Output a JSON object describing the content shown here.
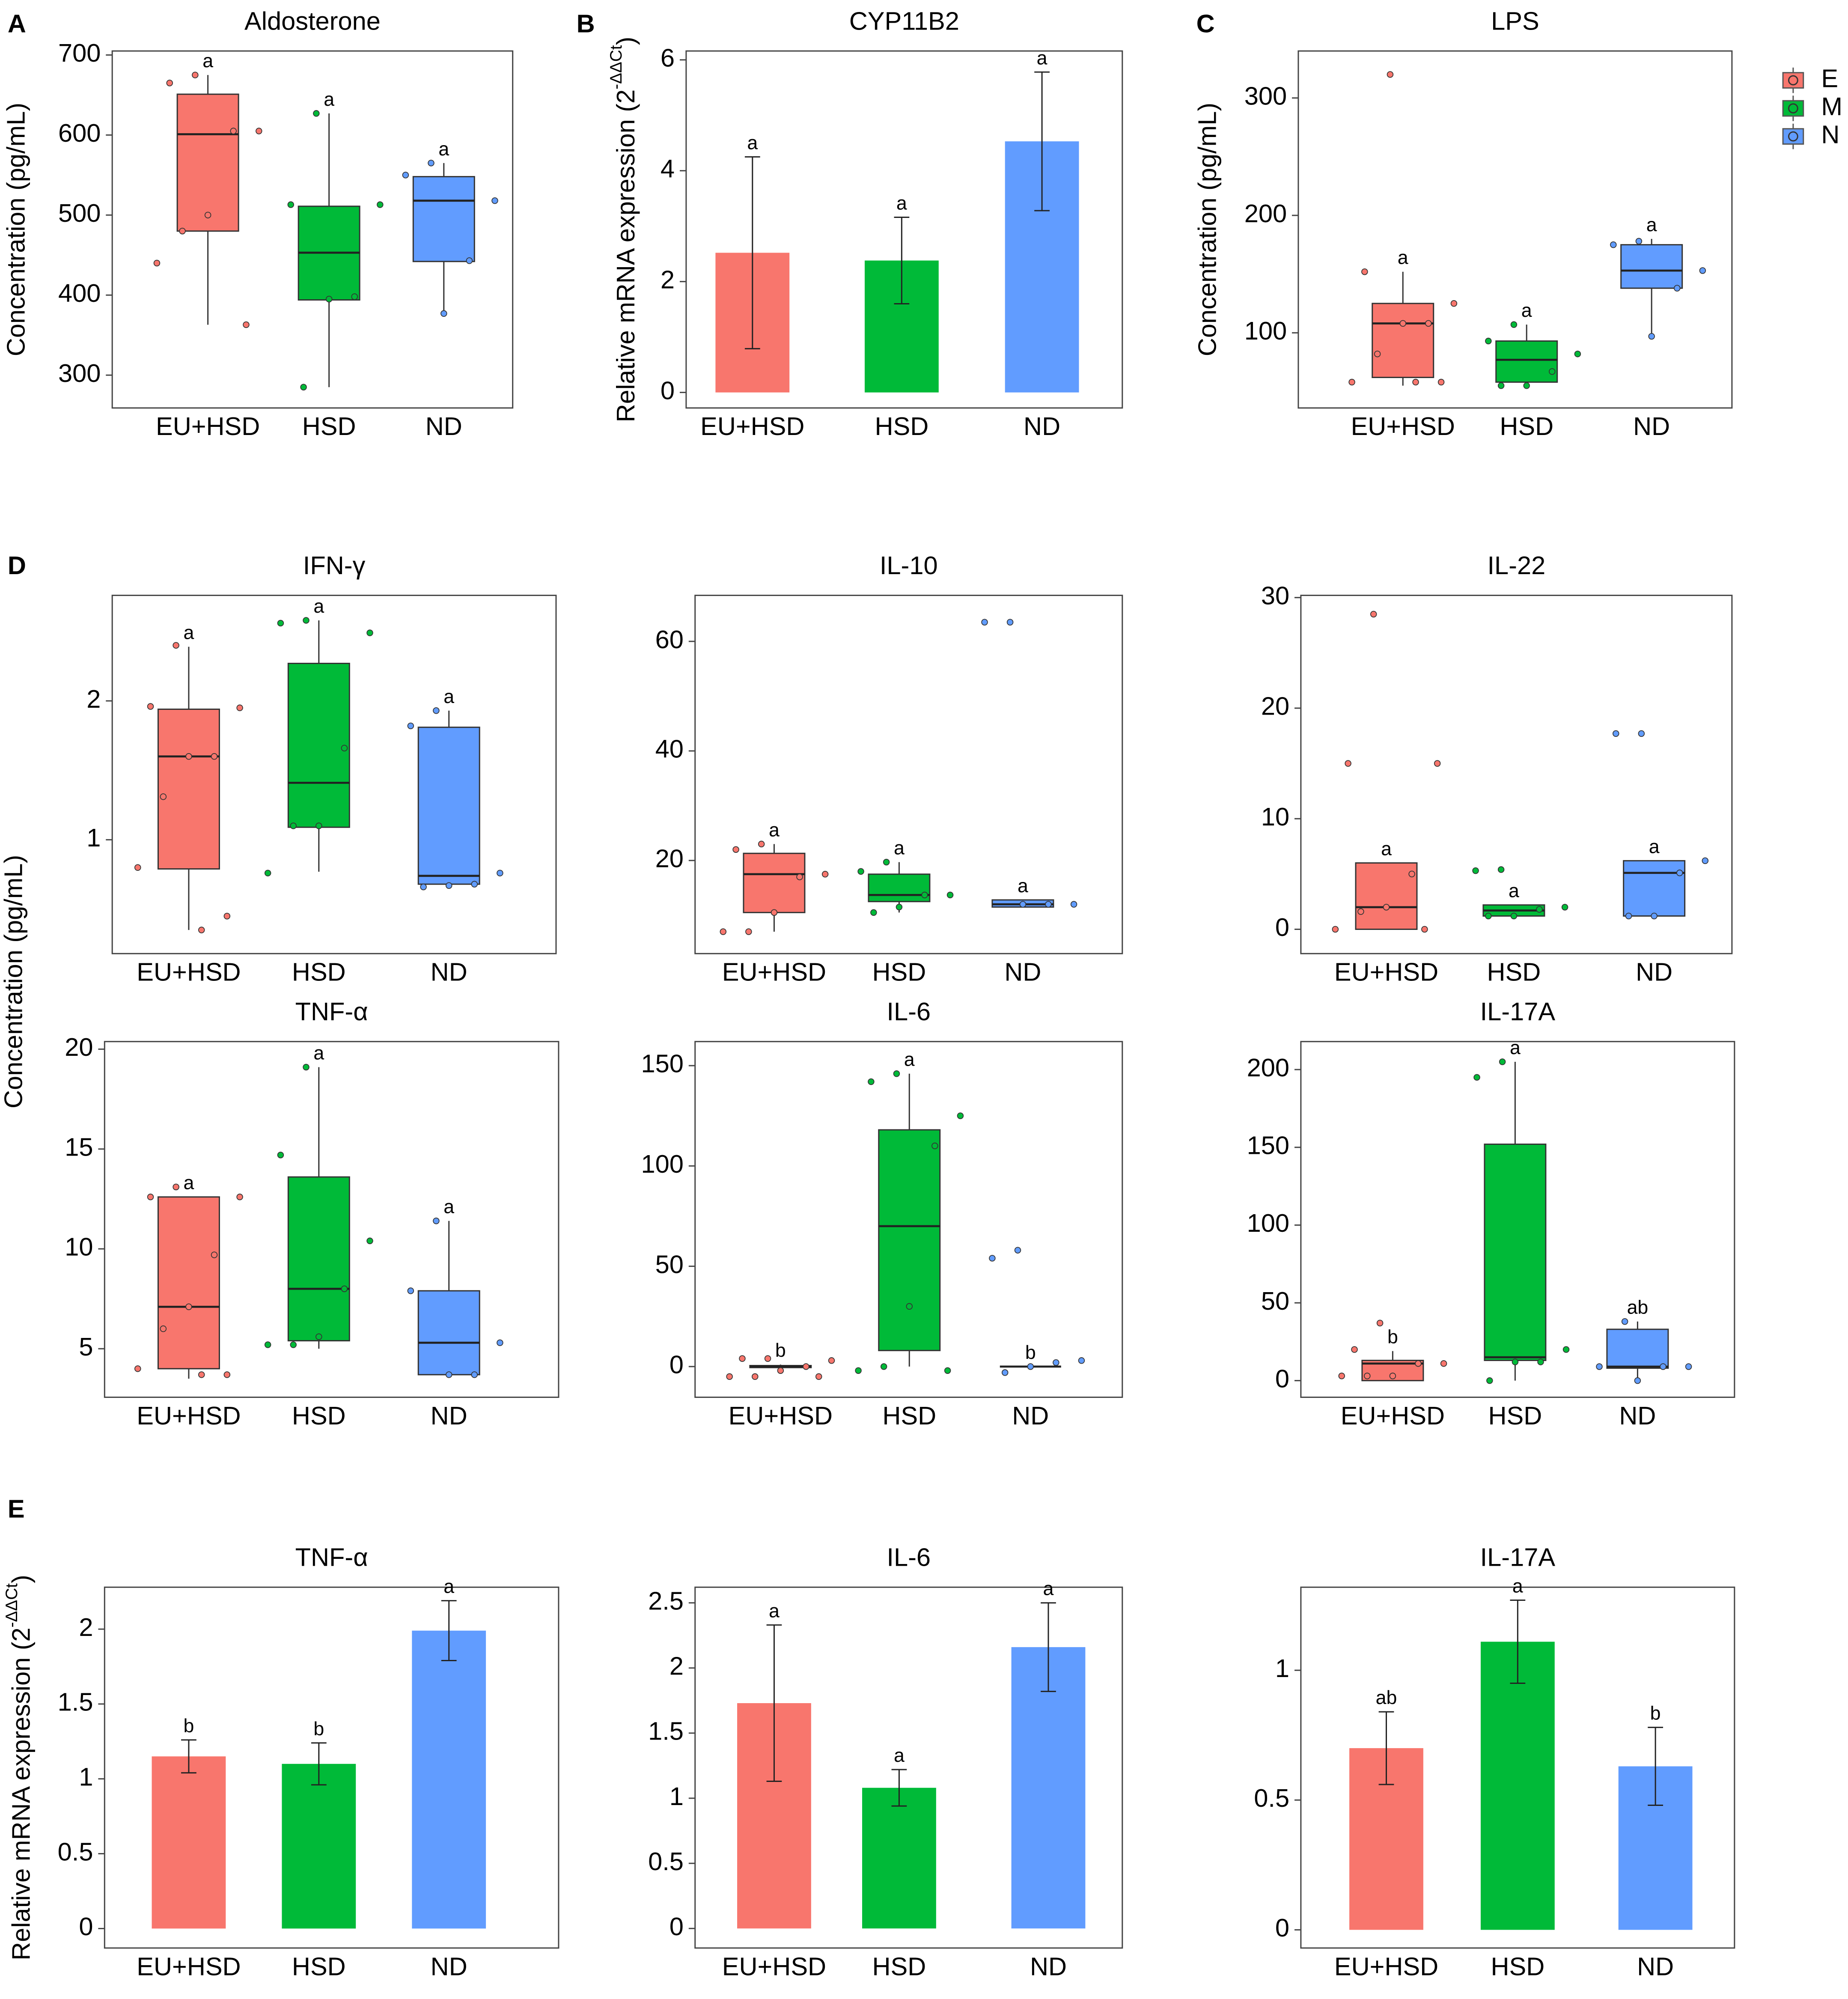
{
  "legend": [
    {
      "name": "E",
      "color": "#F8766D"
    },
    {
      "name": "M",
      "color": "#00BA38"
    },
    {
      "name": "N",
      "color": "#619CFF"
    }
  ],
  "shared_ylabel_D": "Concentration (pg/mL)",
  "chart_data": [
    {
      "type": "box",
      "panel": "A",
      "title": "Aldosterone",
      "ylabel": "Concentration (pg/mL)",
      "categories": [
        "EU+HSD",
        "HSD",
        "ND"
      ],
      "colors": [
        "#F8766D",
        "#00BA38",
        "#619CFF"
      ],
      "ylim": [
        259,
        705
      ],
      "yticks": [
        300,
        400,
        500,
        600,
        700
      ],
      "annotations": [
        "a",
        "a",
        "a"
      ],
      "boxes": [
        {
          "min": 363,
          "q1": 480,
          "median": 601,
          "q3": 651,
          "max": 675,
          "points": [
            675,
            665,
            605,
            605,
            500,
            480,
            440,
            363
          ]
        },
        {
          "min": 285,
          "q1": 394,
          "median": 453,
          "q3": 511,
          "max": 627,
          "points": [
            627,
            513,
            513,
            398,
            395,
            285
          ]
        },
        {
          "min": 377,
          "q1": 442,
          "median": 518,
          "q3": 548,
          "max": 565,
          "points": [
            565,
            550,
            518,
            443,
            377
          ]
        }
      ]
    },
    {
      "type": "bar",
      "panel": "B",
      "title": "CYP11B2",
      "ylabel": "Relative mRNA expression (2",
      "ylabel_sup": "-ΔΔCt",
      "ylabel_end": ")",
      "categories": [
        "EU+HSD",
        "HSD",
        "ND"
      ],
      "colors": [
        "#F8766D",
        "#00BA38",
        "#619CFF"
      ],
      "ylim": [
        -0.28,
        6.16
      ],
      "yticks": [
        0,
        2,
        4,
        6
      ],
      "annotations": [
        "a",
        "a",
        "a"
      ],
      "values": [
        2.52,
        2.38,
        4.53
      ],
      "errors": [
        1.73,
        0.78,
        1.25
      ]
    },
    {
      "type": "box",
      "panel": "C",
      "title": "LPS",
      "ylabel": "Concentration (pg/mL)",
      "categories": [
        "EU+HSD",
        "HSD",
        "ND"
      ],
      "colors": [
        "#F8766D",
        "#00BA38",
        "#619CFF"
      ],
      "ylim": [
        36,
        340
      ],
      "yticks": [
        100,
        200,
        300
      ],
      "annotations": [
        "a",
        "a",
        "a"
      ],
      "boxes": [
        {
          "min": 55,
          "q1": 62,
          "median": 108,
          "q3": 125,
          "max": 152,
          "points": [
            320,
            152,
            125,
            108,
            108,
            82,
            58,
            58,
            58
          ]
        },
        {
          "min": 55,
          "q1": 58,
          "median": 77,
          "q3": 93,
          "max": 107,
          "points": [
            107,
            93,
            82,
            67,
            55,
            55
          ]
        },
        {
          "min": 97,
          "q1": 138,
          "median": 153,
          "q3": 175,
          "max": 180,
          "points": [
            178,
            175,
            153,
            138,
            97
          ]
        }
      ]
    },
    {
      "type": "box",
      "panel": "D",
      "title": "IFN-γ",
      "categories": [
        "EU+HSD",
        "HSD",
        "ND"
      ],
      "colors": [
        "#F8766D",
        "#00BA38",
        "#619CFF"
      ],
      "ylim": [
        0.18,
        2.76
      ],
      "yticks": [
        1,
        2
      ],
      "annotations": [
        "a",
        "a",
        "a"
      ],
      "boxes": [
        {
          "min": 0.35,
          "q1": 0.79,
          "median": 1.6,
          "q3": 1.94,
          "max": 2.39,
          "points": [
            2.4,
            1.96,
            1.95,
            1.6,
            1.6,
            1.31,
            0.8,
            0.45,
            0.35
          ]
        },
        {
          "min": 0.77,
          "q1": 1.09,
          "median": 1.41,
          "q3": 2.27,
          "max": 2.58,
          "points": [
            2.58,
            2.56,
            2.49,
            1.66,
            1.1,
            1.1,
            0.76
          ]
        },
        {
          "min": 0.66,
          "q1": 0.68,
          "median": 0.74,
          "q3": 1.81,
          "max": 1.93,
          "points": [
            1.93,
            1.82,
            0.76,
            0.68,
            0.67,
            0.66
          ]
        }
      ]
    },
    {
      "type": "box",
      "title": "IL-10",
      "categories": [
        "EU+HSD",
        "HSD",
        "ND"
      ],
      "colors": [
        "#F8766D",
        "#00BA38",
        "#619CFF"
      ],
      "ylim": [
        3,
        68.4
      ],
      "yticks": [
        20,
        40,
        60
      ],
      "annotations": [
        "a",
        "a",
        "a"
      ],
      "boxes": [
        {
          "min": 7,
          "q1": 10.5,
          "median": 17.5,
          "q3": 21.3,
          "max": 23,
          "points": [
            23,
            22,
            17.5,
            17,
            10.5,
            7,
            7
          ]
        },
        {
          "min": 10.5,
          "q1": 12.5,
          "median": 13.7,
          "q3": 17.5,
          "max": 19.7,
          "points": [
            19.7,
            18,
            13.7,
            13.7,
            11.5,
            10.5
          ]
        },
        {
          "min": 11.5,
          "q1": 11.5,
          "median": 12,
          "q3": 12.8,
          "max": 12.8,
          "points": [
            63.5,
            63.5,
            12,
            12,
            12
          ]
        }
      ]
    },
    {
      "type": "box",
      "title": "IL-22",
      "categories": [
        "EU+HSD",
        "HSD",
        "ND"
      ],
      "colors": [
        "#F8766D",
        "#00BA38",
        "#619CFF"
      ],
      "ylim": [
        -2.2,
        30.2
      ],
      "yticks": [
        0,
        10,
        20,
        30
      ],
      "annotations": [
        "a",
        "a",
        "a"
      ],
      "boxes": [
        {
          "min": 0,
          "q1": 0,
          "median": 2,
          "q3": 6,
          "max": 6,
          "points": [
            28.5,
            15,
            15,
            5,
            2,
            1.6,
            0,
            0
          ]
        },
        {
          "min": 1.2,
          "q1": 1.2,
          "median": 1.7,
          "q3": 2.2,
          "max": 2.2,
          "points": [
            5.4,
            5.3,
            2,
            1.8,
            1.2,
            1.2
          ]
        },
        {
          "min": 1.2,
          "q1": 1.2,
          "median": 5.1,
          "q3": 6.2,
          "max": 6.2,
          "points": [
            17.7,
            17.7,
            6.2,
            5.1,
            1.2,
            1.2
          ]
        }
      ]
    },
    {
      "type": "box",
      "title": "TNF-α",
      "categories": [
        "EU+HSD",
        "HSD",
        "ND"
      ],
      "colors": [
        "#F8766D",
        "#00BA38",
        "#619CFF"
      ],
      "ylim": [
        2.57,
        20.38
      ],
      "yticks": [
        5,
        10,
        15,
        20
      ],
      "annotations": [
        "a",
        "a",
        "a"
      ],
      "boxes": [
        {
          "min": 3.5,
          "q1": 4,
          "median": 7.1,
          "q3": 12.6,
          "max": 12.6,
          "points": [
            13.1,
            12.6,
            12.6,
            9.7,
            7.1,
            6,
            4,
            3.7,
            3.7
          ]
        },
        {
          "min": 5,
          "q1": 5.4,
          "median": 8,
          "q3": 13.6,
          "max": 19.1,
          "points": [
            19.1,
            14.7,
            10.4,
            8,
            5.6,
            5.2,
            5.2
          ]
        },
        {
          "min": 3.7,
          "q1": 3.7,
          "median": 5.3,
          "q3": 7.9,
          "max": 11.4,
          "points": [
            11.4,
            7.9,
            5.3,
            3.7,
            3.7
          ]
        }
      ]
    },
    {
      "type": "box",
      "title": "IL-6",
      "categories": [
        "EU+HSD",
        "HSD",
        "ND"
      ],
      "colors": [
        "#F8766D",
        "#00BA38",
        "#619CFF"
      ],
      "ylim": [
        -15.3,
        162
      ],
      "yticks": [
        0,
        50,
        100,
        150
      ],
      "annotations": [
        "b",
        "a",
        "b"
      ],
      "boxes": [
        {
          "min": -1,
          "q1": -0.5,
          "median": 0,
          "q3": 0.5,
          "max": 1,
          "points": [
            4,
            4,
            3,
            0,
            -2,
            -5,
            -5,
            -5
          ]
        },
        {
          "min": 0,
          "q1": 8,
          "median": 70,
          "q3": 118,
          "max": 146,
          "points": [
            146,
            142,
            125,
            110,
            30,
            0,
            -2,
            -2
          ]
        },
        {
          "min": 0,
          "q1": 0,
          "median": 0,
          "q3": 0,
          "max": 0,
          "points": [
            58,
            54,
            3,
            2,
            0,
            -3
          ]
        }
      ]
    },
    {
      "type": "box",
      "title": "IL-17A",
      "categories": [
        "EU+HSD",
        "HSD",
        "ND"
      ],
      "colors": [
        "#F8766D",
        "#00BA38",
        "#619CFF"
      ],
      "ylim": [
        -10.7,
        218
      ],
      "yticks": [
        0,
        50,
        100,
        150,
        200
      ],
      "annotations": [
        "b",
        "a",
        "ab"
      ],
      "boxes": [
        {
          "min": 0,
          "q1": 0,
          "median": 11,
          "q3": 13,
          "max": 19,
          "points": [
            37,
            20,
            11,
            11,
            3,
            3,
            3
          ]
        },
        {
          "min": 0,
          "q1": 13,
          "median": 15,
          "q3": 152,
          "max": 205,
          "points": [
            205,
            195,
            20,
            12,
            12,
            0
          ]
        },
        {
          "min": 0,
          "q1": 8,
          "median": 9,
          "q3": 33,
          "max": 38,
          "points": [
            38,
            9,
            9,
            9,
            0
          ]
        }
      ]
    },
    {
      "type": "bar",
      "panel": "E",
      "title": "TNF-α",
      "ylabel": "Relative mRNA expression (2",
      "ylabel_sup": "-ΔΔCt",
      "ylabel_end": ")",
      "categories": [
        "EU+HSD",
        "HSD",
        "ND"
      ],
      "colors": [
        "#F8766D",
        "#00BA38",
        "#619CFF"
      ],
      "ylim": [
        -0.13,
        2.28
      ],
      "yticks": [
        0,
        0.5,
        1,
        1.5,
        2
      ],
      "annotations": [
        "b",
        "b",
        "a"
      ],
      "values": [
        1.15,
        1.1,
        1.99
      ],
      "errors": [
        0.11,
        0.14,
        0.2
      ]
    },
    {
      "type": "bar",
      "title": "IL-6",
      "categories": [
        "EU+HSD",
        "HSD",
        "ND"
      ],
      "colors": [
        "#F8766D",
        "#00BA38",
        "#619CFF"
      ],
      "ylim": [
        -0.15,
        2.62
      ],
      "yticks": [
        0,
        0.5,
        1,
        1.5,
        2,
        2.5
      ],
      "annotations": [
        "a",
        "a",
        "a"
      ],
      "values": [
        1.73,
        1.08,
        2.16
      ],
      "errors": [
        0.6,
        0.14,
        0.34
      ]
    },
    {
      "type": "bar",
      "title": "IL-17A",
      "categories": [
        "EU+HSD",
        "HSD",
        "ND"
      ],
      "colors": [
        "#F8766D",
        "#00BA38",
        "#619CFF"
      ],
      "ylim": [
        -0.07,
        1.32
      ],
      "yticks": [
        0,
        0.5,
        1
      ],
      "annotations": [
        "ab",
        "a",
        "b"
      ],
      "values": [
        0.7,
        1.11,
        0.63
      ],
      "errors": [
        0.14,
        0.16,
        0.15
      ]
    }
  ]
}
